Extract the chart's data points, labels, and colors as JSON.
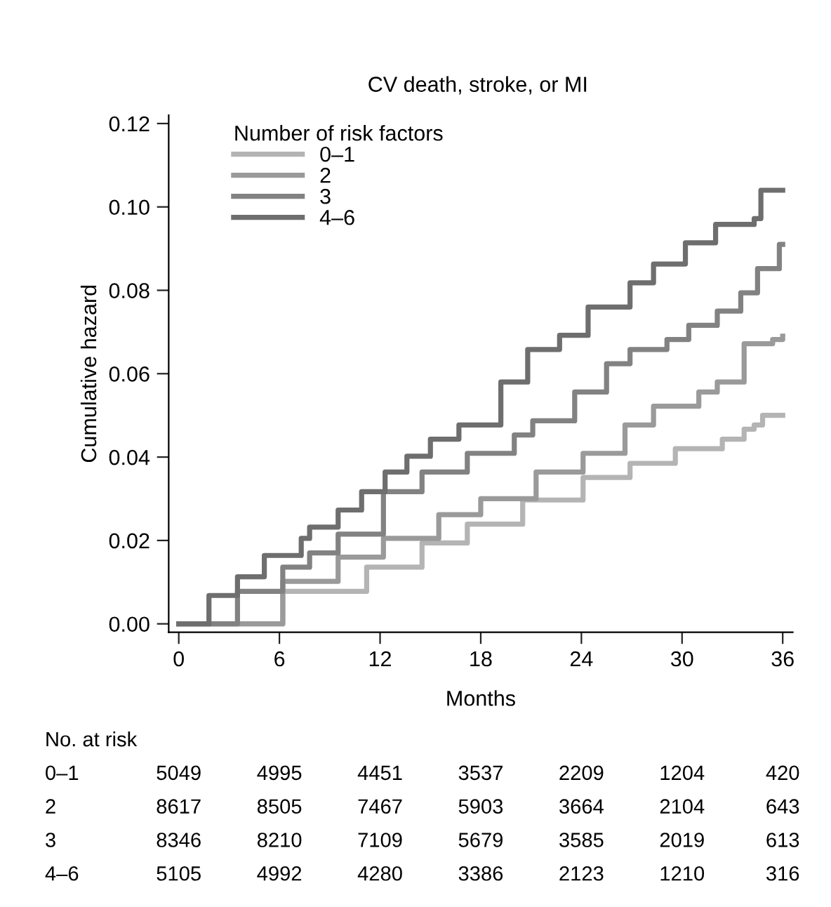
{
  "chart_data": {
    "type": "step",
    "title": "CV death, stroke, or MI",
    "xlabel": "Months",
    "ylabel": "Cumulative hazard",
    "legend_title": "Number of risk factors",
    "legend": "top left",
    "grid": false,
    "marker": "none",
    "line_style": "solid",
    "xlim": [
      -0.6,
      36.6
    ],
    "xticks": [
      0,
      6,
      12,
      18,
      24,
      30,
      36
    ],
    "ylim": [
      -0.002,
      0.122
    ],
    "yticks": [
      {
        "value": 0,
        "label": "0.00"
      },
      {
        "value": 0.02,
        "label": "0.02"
      },
      {
        "value": 0.04,
        "label": "0.04"
      },
      {
        "value": 0.06,
        "label": "0.06"
      },
      {
        "value": 0.08,
        "label": "0.08"
      },
      {
        "value": 0.1,
        "label": "0.10"
      },
      {
        "value": 0.12,
        "label": "0.12"
      }
    ],
    "series": [
      {
        "name": "0–1",
        "color": "#b4b4b4",
        "x": [
          0,
          6.2,
          11.2,
          14.5,
          17.2,
          20.5,
          24.1,
          26.9,
          29.6,
          32.4,
          33.7,
          34.3,
          34.8,
          36
        ],
        "values": [
          0,
          0.0078,
          0.0136,
          0.0194,
          0.0239,
          0.0297,
          0.0351,
          0.0385,
          0.042,
          0.0443,
          0.0467,
          0.0477,
          0.05,
          0.05
        ]
      },
      {
        "name": "2",
        "color": "#9a9a9a",
        "x": [
          0,
          6.2,
          9.5,
          12.2,
          15.5,
          18.0,
          21.3,
          24.1,
          26.6,
          28.3,
          31.0,
          32.1,
          33.7,
          35.4,
          36
        ],
        "values": [
          0,
          0.0102,
          0.016,
          0.0205,
          0.0262,
          0.03,
          0.0364,
          0.0409,
          0.0477,
          0.0522,
          0.0556,
          0.058,
          0.0672,
          0.0682,
          0.069
        ]
      },
      {
        "name": "3",
        "color": "#828282",
        "x": [
          0,
          3.5,
          6.2,
          7.8,
          9.5,
          12.2,
          14.5,
          17.2,
          20.0,
          21.1,
          23.6,
          25.5,
          26.9,
          29.1,
          30.4,
          32.1,
          33.5,
          34.5,
          35.8,
          36
        ],
        "values": [
          0,
          0.0078,
          0.0136,
          0.017,
          0.0215,
          0.0317,
          0.0364,
          0.0409,
          0.0453,
          0.0487,
          0.0556,
          0.0624,
          0.0658,
          0.0682,
          0.0716,
          0.075,
          0.0794,
          0.0852,
          0.091,
          0.091
        ]
      },
      {
        "name": "4–6",
        "color": "#6e6e6e",
        "x": [
          0,
          1.8,
          3.5,
          5.1,
          7.3,
          7.8,
          9.5,
          10.9,
          12.3,
          13.6,
          15.0,
          16.7,
          19.2,
          20.8,
          22.7,
          24.4,
          26.9,
          28.3,
          30.2,
          31.6,
          32.0,
          34.3,
          34.7,
          36
        ],
        "values": [
          0,
          0.0068,
          0.0113,
          0.0164,
          0.0205,
          0.0232,
          0.0273,
          0.0317,
          0.0364,
          0.0402,
          0.0443,
          0.0477,
          0.058,
          0.0658,
          0.0692,
          0.076,
          0.0818,
          0.0863,
          0.0914,
          0.0914,
          0.0958,
          0.0972,
          0.104,
          0.104
        ]
      }
    ],
    "annotations": [
      "No. at risk",
      "0–1 5049 4995 4451 3537 2209 1204 420",
      "2 8617 8505 7467 5903 3664 2104 643",
      "3 8346 8210 7109 5679 3585 2019 613",
      "4–6 5105 4992 4280 3386 2123 1210 316"
    ]
  }
}
